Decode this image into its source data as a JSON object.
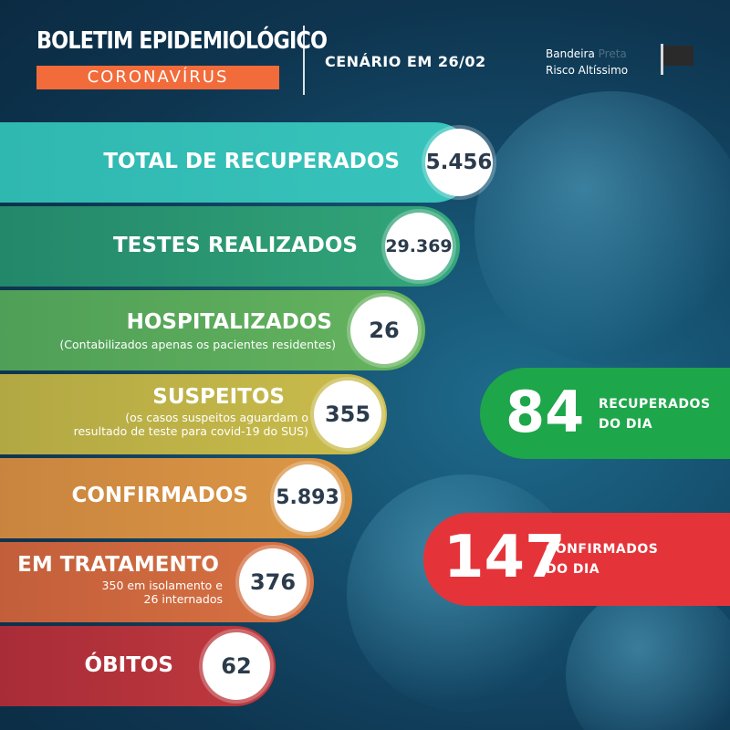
{
  "header": {
    "title": "BOLETIM EPIDEMIOLÓGICO",
    "subtitle": "CORONAVÍRUS",
    "scenario": "CENÁRIO EM 26/02",
    "flag_line1_a": "Bandeira",
    "flag_line1_b": "Preta",
    "flag_line2": "Risco Altíssimo",
    "flag_icon": "black-flag-icon"
  },
  "stats": {
    "recuperados": {
      "label": "TOTAL DE RECUPERADOS",
      "value": "5.456"
    },
    "testes": {
      "label": "TESTES REALIZADOS",
      "value": "29.369"
    },
    "hospitalizados": {
      "label": "HOSPITALIZADOS",
      "note": "(Contabilizados apenas os pacientes residentes)",
      "value": "26"
    },
    "suspeitos": {
      "label": "SUSPEITOS",
      "note1": "(os casos suspeitos aguardam o",
      "note2": "resultado de teste para covid-19 do SUS)",
      "value": "355"
    },
    "confirmados": {
      "label": "CONFIRMADOS",
      "value": "5.893"
    },
    "tratamento": {
      "label": "EM TRATAMENTO",
      "note1": "350 em isolamento e",
      "note2": "26 internados",
      "value": "376"
    },
    "obitos": {
      "label": "ÓBITOS",
      "value": "62"
    }
  },
  "daily": {
    "recuperados": {
      "value": "84",
      "line1": "RECUPERADOS",
      "line2": "DO DIA",
      "color": "#1ea64a"
    },
    "confirmados": {
      "value": "147",
      "line1": "CONFIRMADOS",
      "line2": "DO DIA",
      "color": "#e4343a"
    }
  },
  "colors": {
    "recuperados": "#2fb8b0",
    "testes": "#2a9a6e",
    "hospitalizados": "#5aab5a",
    "suspeitos": "#bfb347",
    "confirmados": "#d9903f",
    "tratamento": "#d06a3e",
    "obitos": "#b9333b"
  }
}
